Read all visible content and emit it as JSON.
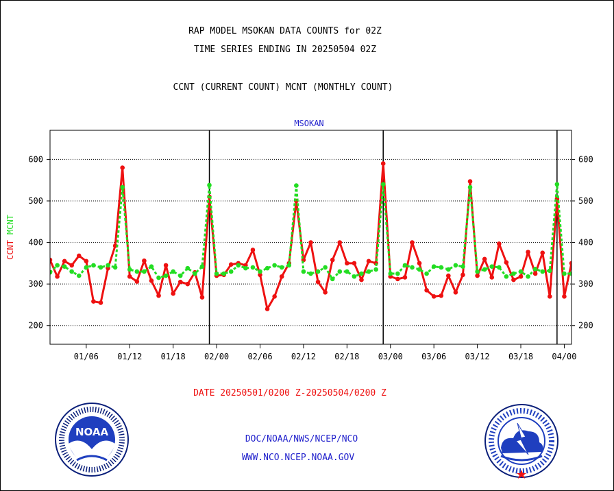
{
  "header": {
    "title_line1": "RAP MODEL MSOKAN DATA COUNTS for 02Z",
    "title_line2": "TIME SERIES ENDING IN 20250504 02Z",
    "subtitle": "CCNT (CURRENT COUNT) MCNT (MONTHLY COUNT)"
  },
  "footer": {
    "date_range": "DATE 20250501/0200 Z-20250504/0200 Z",
    "org_path": "DOC/NOAA/NWS/NCEP/NCO",
    "website": "WWW.NCO.NCEP.NOAA.GOV"
  },
  "logos": {
    "noaa_text": "NOAA",
    "noaa_ring": "NATIONAL OCEANIC AND ATMOSPHERIC ADMINISTRATION · U.S. DEPARTMENT OF COMMERCE",
    "nws_ring": "NATIONAL WEATHER SERVICE"
  },
  "colors": {
    "ccnt": "#ee1111",
    "mcnt": "#22dd22",
    "title": "#000000",
    "plot_label": "#2222cc",
    "date_text": "#ee1111",
    "links": "#2222cc"
  },
  "chart_data": {
    "type": "line",
    "plot_title": "MSOKAN",
    "ylabel_ccnt": "CCNT",
    "ylabel_mcnt": "MCNT",
    "ylim": [
      155,
      670
    ],
    "yticks": [
      200,
      300,
      400,
      500,
      600
    ],
    "xlim": [
      0,
      72
    ],
    "xticks": [
      {
        "x": 5,
        "label": "01/06"
      },
      {
        "x": 11,
        "label": "01/12"
      },
      {
        "x": 17,
        "label": "01/18"
      },
      {
        "x": 23,
        "label": "02/00"
      },
      {
        "x": 29,
        "label": "02/06"
      },
      {
        "x": 35,
        "label": "02/12"
      },
      {
        "x": 41,
        "label": "02/18"
      },
      {
        "x": 47,
        "label": "03/00"
      },
      {
        "x": 53,
        "label": "03/06"
      },
      {
        "x": 59,
        "label": "03/12"
      },
      {
        "x": 65,
        "label": "03/18"
      },
      {
        "x": 71,
        "label": "04/00"
      }
    ],
    "day_dividers": [
      22,
      46,
      70
    ],
    "grid": true,
    "series": [
      {
        "name": "CCNT",
        "color": "#ee1111",
        "x": [
          0,
          1,
          2,
          3,
          4,
          5,
          6,
          7,
          8,
          9,
          10,
          11,
          12,
          13,
          14,
          15,
          16,
          17,
          18,
          19,
          20,
          21,
          22,
          23,
          24,
          25,
          26,
          27,
          28,
          29,
          30,
          31,
          32,
          33,
          34,
          35,
          36,
          37,
          38,
          39,
          40,
          41,
          42,
          43,
          44,
          45,
          46,
          47,
          48,
          49,
          50,
          51,
          52,
          53,
          54,
          55,
          56,
          57,
          58,
          59,
          60,
          61,
          62,
          63,
          64,
          65,
          66,
          67,
          68,
          69,
          70,
          71,
          72
        ],
        "values": [
          358,
          318,
          355,
          345,
          368,
          355,
          258,
          255,
          338,
          392,
          580,
          318,
          306,
          356,
          308,
          272,
          345,
          277,
          305,
          300,
          328,
          268,
          510,
          320,
          322,
          347,
          350,
          345,
          382,
          322,
          240,
          270,
          318,
          350,
          500,
          358,
          400,
          305,
          280,
          358,
          400,
          350,
          350,
          310,
          355,
          350,
          590,
          318,
          312,
          316,
          400,
          350,
          285,
          270,
          272,
          320,
          280,
          322,
          547,
          320,
          360,
          316,
          397,
          352,
          310,
          318,
          377,
          325,
          375,
          270,
          505,
          270,
          350
        ]
      },
      {
        "name": "MCNT",
        "color": "#22dd22",
        "x": [
          0,
          1,
          2,
          3,
          4,
          5,
          6,
          7,
          8,
          9,
          10,
          11,
          12,
          13,
          14,
          15,
          16,
          17,
          18,
          19,
          20,
          21,
          22,
          23,
          24,
          25,
          26,
          27,
          28,
          29,
          30,
          31,
          32,
          33,
          34,
          35,
          36,
          37,
          38,
          39,
          40,
          41,
          42,
          43,
          44,
          45,
          46,
          47,
          48,
          49,
          50,
          51,
          52,
          53,
          54,
          55,
          56,
          57,
          58,
          59,
          60,
          61,
          62,
          63,
          64,
          65,
          66,
          67,
          68,
          69,
          70,
          71,
          72
        ],
        "values": [
          328,
          345,
          342,
          330,
          320,
          340,
          345,
          340,
          345,
          340,
          533,
          335,
          330,
          330,
          342,
          315,
          320,
          330,
          320,
          338,
          325,
          342,
          538,
          325,
          325,
          330,
          345,
          338,
          340,
          330,
          338,
          345,
          340,
          345,
          537,
          330,
          325,
          330,
          340,
          312,
          330,
          330,
          318,
          325,
          330,
          335,
          540,
          325,
          325,
          345,
          340,
          335,
          325,
          342,
          340,
          335,
          345,
          342,
          533,
          330,
          335,
          342,
          340,
          318,
          325,
          330,
          318,
          336,
          330,
          332,
          540,
          325,
          325
        ]
      }
    ]
  }
}
